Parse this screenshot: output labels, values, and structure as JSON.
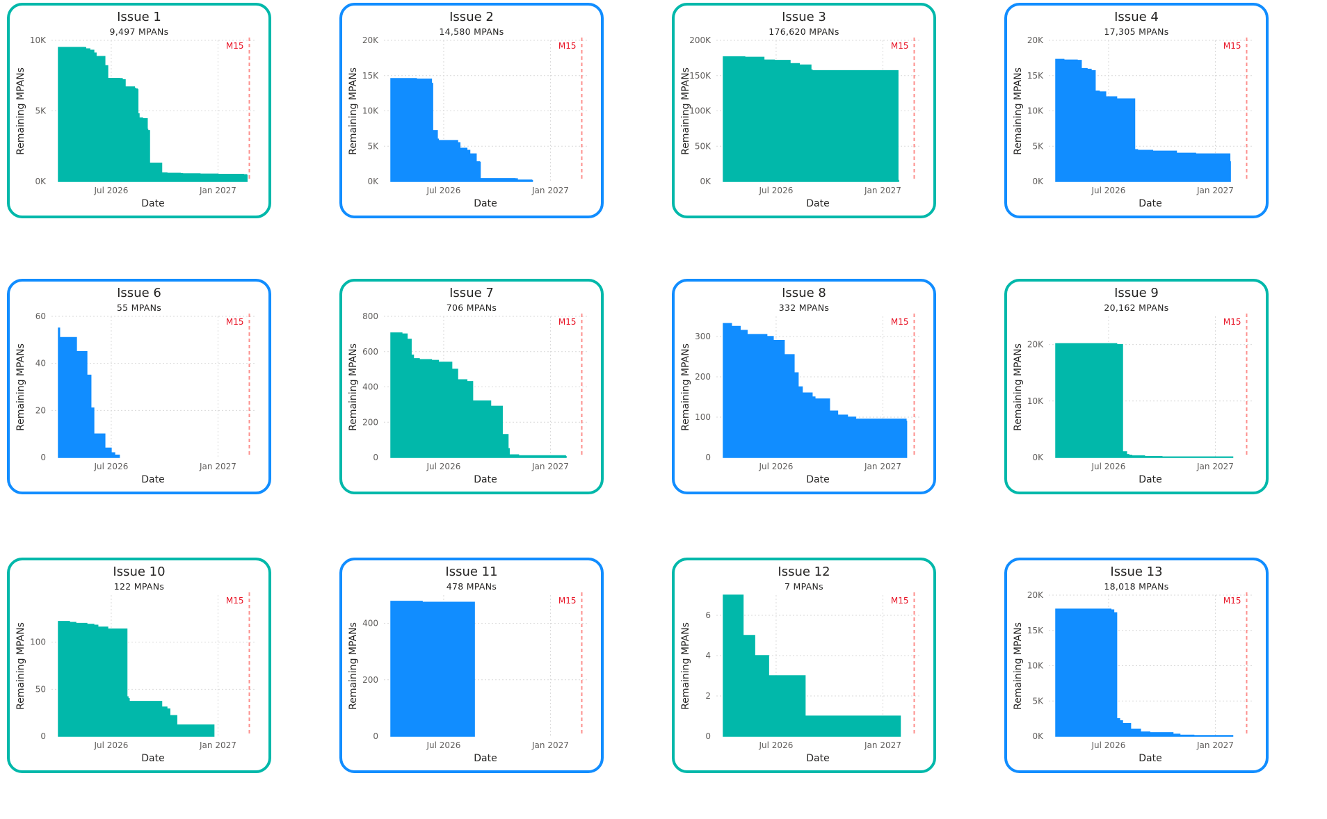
{
  "colors": {
    "teal": "#01b8aa",
    "blue": "#118dff",
    "marker": "#fd625e",
    "grid": "#d9d9d9",
    "tick": "#605e5c"
  },
  "chart_data": [
    {
      "type": "area",
      "title": "Issue 1",
      "subtitle": "9,497 MPANs",
      "color": "teal",
      "theme": "teal",
      "xlabel": "Date",
      "ylabel": "Remaining MPANs",
      "ylim": [
        0,
        10000
      ],
      "yticks": [
        {
          "v": 0,
          "label": "0K"
        },
        {
          "v": 5000,
          "label": "5K"
        },
        {
          "v": 10000,
          "label": "10K"
        }
      ],
      "xticks": [
        "Jul 2026",
        "Jan 2027"
      ],
      "reference_line": {
        "label": "M15",
        "date": "2027-02-24"
      },
      "series": [
        {
          "x": [
            "2026-04-01",
            "2026-05-15",
            "2026-05-18",
            "2026-05-25",
            "2026-06-01",
            "2026-06-05",
            "2026-06-20",
            "2026-06-25",
            "2026-07-15",
            "2026-07-20",
            "2026-07-25",
            "2026-08-10",
            "2026-08-12",
            "2026-08-15",
            "2026-08-16",
            "2026-08-18",
            "2026-08-24",
            "2026-09-01",
            "2026-09-02",
            "2026-09-05",
            "2026-09-26",
            "2026-10-05",
            "2026-10-28",
            "2026-11-01",
            "2026-12-01",
            "2027-01-01",
            "2027-02-14",
            "2027-02-19",
            "2027-02-20"
          ],
          "y": [
            9497,
            9490,
            9400,
            9300,
            9100,
            8850,
            8200,
            7300,
            7290,
            7200,
            6700,
            6600,
            6550,
            6500,
            4800,
            4500,
            4450,
            3700,
            3600,
            1300,
            600,
            580,
            560,
            540,
            520,
            500,
            480,
            450,
            0
          ]
        }
      ]
    },
    {
      "type": "area",
      "title": "Issue 2",
      "subtitle": "14,580 MPANs",
      "color": "blue",
      "theme": "blue",
      "xlabel": "Date",
      "ylabel": "Remaining MPANs",
      "ylim": [
        0,
        20000
      ],
      "yticks": [
        {
          "v": 0,
          "label": "0K"
        },
        {
          "v": 5000,
          "label": "5K"
        },
        {
          "v": 10000,
          "label": "10K"
        },
        {
          "v": 15000,
          "label": "15K"
        },
        {
          "v": 20000,
          "label": "20K"
        }
      ],
      "xticks": [
        "Jul 2026",
        "Jan 2027"
      ],
      "reference_line": {
        "label": "M15",
        "date": "2027-02-24"
      },
      "series": [
        {
          "x": [
            "2026-04-01",
            "2026-05-15",
            "2026-06-10",
            "2026-06-12",
            "2026-06-20",
            "2026-06-22",
            "2026-07-25",
            "2026-07-29",
            "2026-08-10",
            "2026-08-15",
            "2026-08-26",
            "2026-09-01",
            "2026-09-02",
            "2026-11-01",
            "2026-11-05",
            "2026-11-30",
            "2026-12-01"
          ],
          "y": [
            14580,
            14500,
            13900,
            7200,
            6000,
            5800,
            5500,
            4700,
            4400,
            3900,
            2800,
            2700,
            400,
            380,
            200,
            120,
            0
          ]
        }
      ]
    },
    {
      "type": "area",
      "title": "Issue 3",
      "subtitle": "176,620 MPANs",
      "color": "teal",
      "theme": "teal",
      "xlabel": "Date",
      "ylabel": "Remaining MPANs",
      "ylim": [
        0,
        200000
      ],
      "yticks": [
        {
          "v": 0,
          "label": "0K"
        },
        {
          "v": 50000,
          "label": "50K"
        },
        {
          "v": 100000,
          "label": "100K"
        },
        {
          "v": 150000,
          "label": "150K"
        },
        {
          "v": 200000,
          "label": "200K"
        }
      ],
      "xticks": [
        "Jul 2026",
        "Jan 2027"
      ],
      "reference_line": {
        "label": "M15",
        "date": "2027-02-24"
      },
      "series": [
        {
          "x": [
            "2026-04-01",
            "2026-05-08",
            "2026-06-10",
            "2026-06-28",
            "2026-07-25",
            "2026-08-10",
            "2026-08-30",
            "2026-09-01",
            "2027-01-27",
            "2027-01-28"
          ],
          "y": [
            176620,
            176000,
            172000,
            171500,
            167000,
            165000,
            158000,
            157000,
            1500,
            0
          ]
        }
      ]
    },
    {
      "type": "area",
      "title": "Issue 4",
      "subtitle": "17,305 MPANs",
      "color": "blue",
      "theme": "blue",
      "xlabel": "Date",
      "ylabel": "Remaining MPANs",
      "ylim": [
        0,
        20000
      ],
      "yticks": [
        {
          "v": 0,
          "label": "0K"
        },
        {
          "v": 5000,
          "label": "5K"
        },
        {
          "v": 10000,
          "label": "10K"
        },
        {
          "v": 15000,
          "label": "15K"
        },
        {
          "v": 20000,
          "label": "20K"
        }
      ],
      "xticks": [
        "Jul 2026",
        "Jan 2027"
      ],
      "reference_line": {
        "label": "M15",
        "date": "2027-02-24"
      },
      "series": [
        {
          "x": [
            "2026-04-01",
            "2026-04-15",
            "2026-05-08",
            "2026-05-15",
            "2026-05-25",
            "2026-06-01",
            "2026-06-08",
            "2026-06-15",
            "2026-06-26",
            "2026-07-15",
            "2026-08-15",
            "2026-08-20",
            "2026-09-15",
            "2026-10-26",
            "2026-11-28",
            "2027-01-26",
            "2027-01-27"
          ],
          "y": [
            17305,
            17200,
            17150,
            16000,
            15900,
            15700,
            12800,
            12700,
            12000,
            11700,
            4500,
            4400,
            4300,
            4000,
            3900,
            2800,
            200
          ]
        }
      ]
    }
  ]
}
